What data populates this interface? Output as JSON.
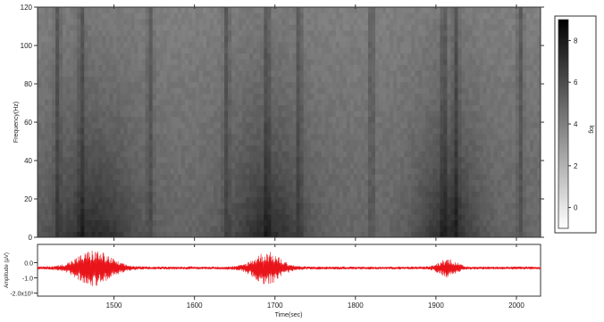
{
  "chart_data": [
    {
      "type": "heatmap",
      "title": "",
      "xlabel": "",
      "ylabel": "Frequency(Hz)",
      "xlim": [
        1405,
        2030
      ],
      "ylim": [
        0,
        120
      ],
      "x_ticks": [
        1500,
        1600,
        1700,
        1800,
        1900,
        2000
      ],
      "y_ticks": [
        0,
        20,
        40,
        60,
        80,
        100,
        120
      ],
      "y_tick_labels": [
        "0",
        "20",
        "40",
        "60",
        "80",
        "100",
        "120"
      ],
      "colorbar": {
        "label": "log",
        "range": [
          -1,
          9
        ],
        "ticks": [
          0,
          2,
          4,
          6,
          8
        ],
        "tick_labels": [
          "0",
          "2",
          "4",
          "6",
          "8"
        ],
        "colormap": "white-to-black"
      },
      "dark_vertical_bands_time": [
        1430,
        1460,
        1545,
        1640,
        1690,
        1730,
        1820,
        1910,
        1925,
        2005
      ],
      "low_frequency_energy_bursts": [
        {
          "center": 1475,
          "width": 55
        },
        {
          "center": 1690,
          "width": 50
        },
        {
          "center": 1915,
          "width": 40
        }
      ]
    },
    {
      "type": "line",
      "title": "",
      "xlabel": "Time(sec)",
      "ylabel": "Amplitude (µV)",
      "xlim": [
        1405,
        2030
      ],
      "ylim": [
        -2.2,
        1.2
      ],
      "x_ticks": [
        1500,
        1600,
        1700,
        1800,
        1900,
        2000
      ],
      "x_tick_labels": [
        "1500",
        "1600",
        "1700",
        "1800",
        "1900",
        "2000"
      ],
      "y_ticks": [
        0.0,
        -1.0,
        -2.0
      ],
      "y_tick_labels": [
        "0.0",
        "-1.0",
        "-2.0x10³"
      ],
      "series": [
        {
          "color": "#e8141a",
          "baseline": -0.35,
          "bursts": [
            {
              "center": 1475,
              "width": 28,
              "amplitude": 1.1
            },
            {
              "center": 1690,
              "width": 22,
              "amplitude": 1.0
            },
            {
              "center": 1915,
              "width": 14,
              "amplitude": 0.55
            }
          ],
          "noise_amplitude": 0.1
        }
      ]
    }
  ],
  "colors": {
    "signal": "#e8141a",
    "frame": "#333333"
  }
}
